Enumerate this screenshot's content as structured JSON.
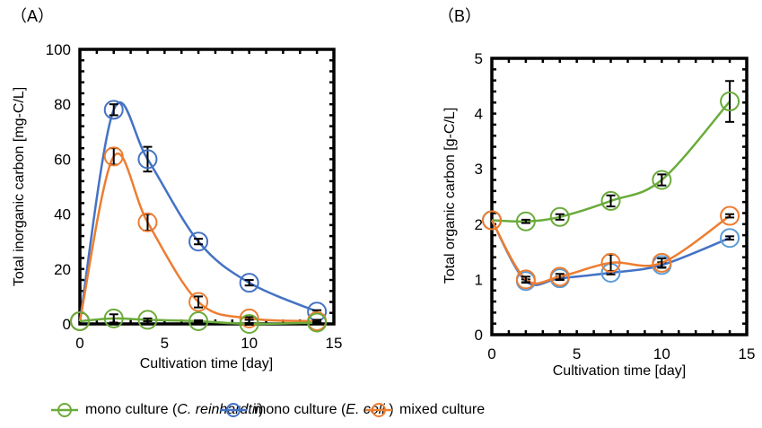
{
  "chart_data": [
    {
      "id": "A",
      "type": "line",
      "panel_label": "（A）",
      "title": "",
      "xlabel": "Cultivation time [day]",
      "ylabel": "Total inorganic carbon [mg-C/L]",
      "xlim": [
        0,
        15
      ],
      "ylim": [
        0,
        100
      ],
      "xticks": [
        0,
        5,
        10,
        15
      ],
      "yticks": [
        0,
        20,
        40,
        60,
        80,
        100
      ],
      "grid": false,
      "x": [
        0,
        2,
        4,
        7,
        10,
        14
      ],
      "series": [
        {
          "name": "mono culture (C. reinhardtii)",
          "key": "green",
          "values": [
            1,
            2,
            1.5,
            1,
            0,
            0.5
          ],
          "errors": [
            0,
            1.5,
            0.5,
            0.3,
            0.3,
            0.3
          ]
        },
        {
          "name": "mono culture (E. coli)",
          "key": "blue",
          "values": [
            1,
            78,
            60,
            30,
            15,
            4.5
          ],
          "errors": [
            0,
            2,
            4.5,
            1,
            1,
            0.5
          ]
        },
        {
          "name": "mixed culture",
          "key": "orange",
          "values": [
            1,
            61,
            37,
            8,
            2,
            1
          ],
          "errors": [
            0,
            3,
            3,
            2,
            0.5,
            0.5
          ]
        }
      ]
    },
    {
      "id": "B",
      "type": "line",
      "panel_label": "（B）",
      "title": "",
      "xlabel": "Cultivation time [day]",
      "ylabel": "Total organic carbon [g-C/L]",
      "xlim": [
        0,
        15
      ],
      "ylim": [
        0,
        5
      ],
      "xticks": [
        0,
        5,
        10,
        15
      ],
      "yticks": [
        0,
        1,
        2,
        3,
        4,
        5
      ],
      "grid": false,
      "x": [
        0,
        2,
        4,
        7,
        10,
        14
      ],
      "series": [
        {
          "name": "mono culture (C. reinhardtii)",
          "key": "green",
          "values": [
            2.07,
            2.05,
            2.13,
            2.42,
            2.8,
            4.22
          ],
          "errors": [
            0,
            0.03,
            0.05,
            0.1,
            0.1,
            0.37
          ]
        },
        {
          "name": "mono culture (E. coli)",
          "key": "blue",
          "values": [
            2.07,
            0.97,
            1.02,
            1.12,
            1.26,
            1.75
          ],
          "errors": [
            0,
            0.03,
            0.03,
            0.03,
            0.05,
            0.03
          ]
        },
        {
          "name": "mixed culture",
          "key": "orange",
          "values": [
            2.07,
            1.0,
            1.05,
            1.3,
            1.3,
            2.15
          ],
          "errors": [
            0,
            0.05,
            0.05,
            0.15,
            0.08,
            0.03
          ]
        }
      ]
    }
  ],
  "colors": {
    "green": "#6aab3a",
    "blue": "#4472c4",
    "blue_marker": "#5b9bd5",
    "orange": "#ed7d31",
    "axis": "#000000"
  },
  "legend": {
    "position": "bottom",
    "items": [
      {
        "key": "green",
        "prefix": "mono culture (",
        "italic": "C. reinhardtii",
        "suffix": ")"
      },
      {
        "key": "blue",
        "prefix": "mono culture (",
        "italic": "E. coli ",
        "suffix": ")"
      },
      {
        "key": "orange",
        "prefix": "mixed culture",
        "italic": "",
        "suffix": ""
      }
    ]
  }
}
